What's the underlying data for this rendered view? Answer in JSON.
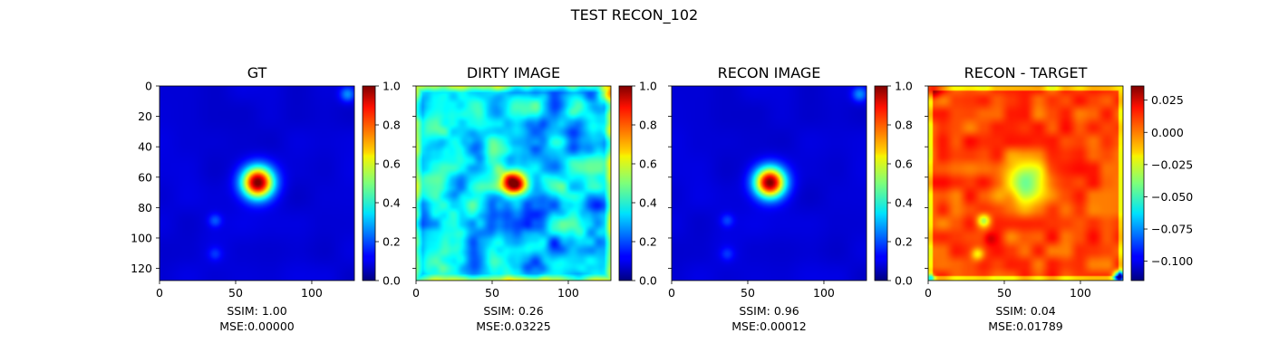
{
  "figure_title": "TEST RECON_102",
  "colormap": "jet",
  "chart_data": [
    {
      "type": "heatmap",
      "title": "GT",
      "colormap": "jet",
      "image_size": [
        128,
        128
      ],
      "xlim": [
        0,
        128
      ],
      "ylim": [
        128,
        0
      ],
      "x_ticks": [
        0,
        50,
        100
      ],
      "y_ticks": [
        0,
        20,
        40,
        60,
        80,
        100,
        120
      ],
      "show_y_tick_labels": true,
      "colorbar_range": [
        0.0,
        1.0
      ],
      "colorbar_ticks": [
        "0.0",
        "0.2",
        "0.4",
        "0.6",
        "0.8",
        "1.0"
      ],
      "colorbar_tick_values": [
        0.0,
        0.2,
        0.4,
        0.6,
        0.8,
        1.0
      ],
      "ssim_label": "SSIM: 1.00",
      "mse_label": "MSE:0.00000",
      "ssim": 1.0,
      "mse": 0.0
    },
    {
      "type": "heatmap",
      "title": "DIRTY IMAGE",
      "colormap": "jet",
      "image_size": [
        128,
        128
      ],
      "xlim": [
        0,
        128
      ],
      "ylim": [
        128,
        0
      ],
      "x_ticks": [
        0,
        50,
        100
      ],
      "y_ticks": [
        0,
        20,
        40,
        60,
        80,
        100,
        120
      ],
      "show_y_tick_labels": false,
      "colorbar_range": [
        0.0,
        1.0
      ],
      "colorbar_ticks": [
        "0.0",
        "0.2",
        "0.4",
        "0.6",
        "0.8",
        "1.0"
      ],
      "colorbar_tick_values": [
        0.0,
        0.2,
        0.4,
        0.6,
        0.8,
        1.0
      ],
      "ssim_label": "SSIM: 0.26",
      "mse_label": "MSE:0.03225",
      "ssim": 0.26,
      "mse": 0.03225
    },
    {
      "type": "heatmap",
      "title": "RECON IMAGE",
      "colormap": "jet",
      "image_size": [
        128,
        128
      ],
      "xlim": [
        0,
        128
      ],
      "ylim": [
        128,
        0
      ],
      "x_ticks": [
        0,
        50,
        100
      ],
      "y_ticks": [
        0,
        20,
        40,
        60,
        80,
        100,
        120
      ],
      "show_y_tick_labels": false,
      "colorbar_range": [
        0.0,
        1.0
      ],
      "colorbar_ticks": [
        "0.0",
        "0.2",
        "0.4",
        "0.6",
        "0.8",
        "1.0"
      ],
      "colorbar_tick_values": [
        0.0,
        0.2,
        0.4,
        0.6,
        0.8,
        1.0
      ],
      "ssim_label": "SSIM: 0.96",
      "mse_label": "MSE:0.00012",
      "ssim": 0.96,
      "mse": 0.00012
    },
    {
      "type": "heatmap",
      "title": "RECON - TARGET",
      "colormap": "jet",
      "image_size": [
        128,
        128
      ],
      "xlim": [
        0,
        128
      ],
      "ylim": [
        128,
        0
      ],
      "x_ticks": [
        0,
        50,
        100
      ],
      "y_ticks": [
        0,
        20,
        40,
        60,
        80,
        100,
        120
      ],
      "show_y_tick_labels": false,
      "colorbar_range": [
        -0.115,
        0.036
      ],
      "colorbar_ticks": [
        "0.025",
        "0.000",
        "−0.025",
        "−0.050",
        "−0.075",
        "−0.100"
      ],
      "colorbar_tick_values": [
        0.025,
        0.0,
        -0.025,
        -0.05,
        -0.075,
        -0.1
      ],
      "ssim_label": "SSIM: 0.04",
      "mse_label": "MSE:0.01789",
      "ssim": 0.04,
      "mse": 0.01789
    }
  ]
}
